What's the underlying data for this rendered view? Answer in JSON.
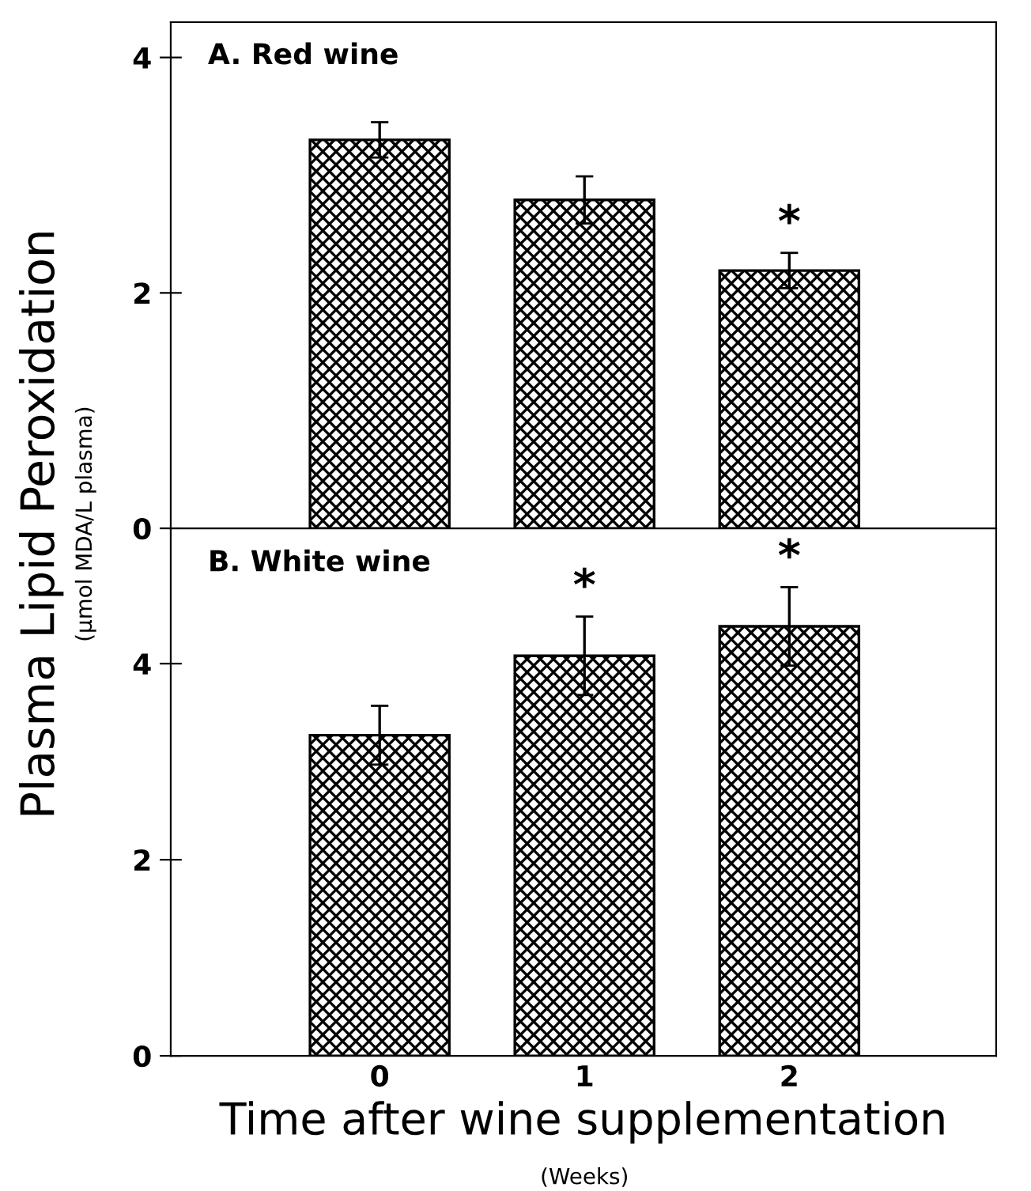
{
  "chart_data": [
    {
      "type": "bar",
      "title": "A. Red wine",
      "ylabel": "Plasma Lipid Peroxidation",
      "categories": [
        "0",
        "1",
        "2"
      ],
      "series": [
        {
          "color": "#000000",
          "values": [
            3.3,
            2.79,
            2.19
          ],
          "errors": [
            0.15,
            0.2,
            0.15
          ]
        }
      ],
      "ylim": [
        0,
        4.3
      ],
      "yticks": [
        0,
        2,
        4
      ],
      "tick_labels": "y",
      "grid": false,
      "legend": false,
      "annotations": [
        "(μmol MDA/L plasma)",
        "*"
      ]
    },
    {
      "type": "bar",
      "title": "B. White wine",
      "xlabel": "Time after wine supplementation",
      "categories": [
        "0",
        "1",
        "2"
      ],
      "series": [
        {
          "color": "#000000",
          "values": [
            3.27,
            4.08,
            4.38
          ],
          "errors": [
            0.3,
            0.4,
            0.4
          ]
        }
      ],
      "ylim": [
        0,
        5.38
      ],
      "yticks": [
        0,
        2,
        4
      ],
      "tick_labels": "xy",
      "grid": false,
      "legend": false,
      "annotations": [
        "(Weeks)",
        "*",
        "*"
      ]
    }
  ]
}
